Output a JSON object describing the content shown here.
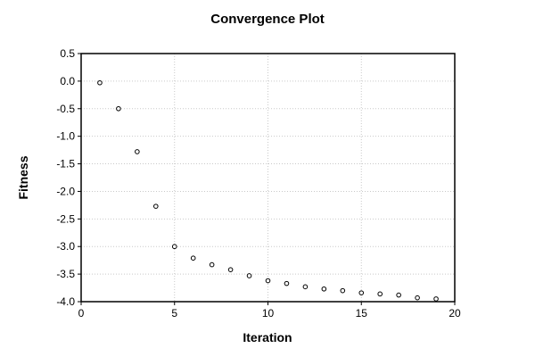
{
  "chart_data": {
    "type": "scatter",
    "title": "Convergence Plot",
    "xlabel": "Iteration",
    "ylabel": "Fitness",
    "xlim": [
      0,
      20
    ],
    "ylim": [
      -4.0,
      0.5
    ],
    "grid": true,
    "legend": "none",
    "marker": "open-circle",
    "x": [
      1,
      2,
      3,
      4,
      5,
      6,
      7,
      8,
      9,
      10,
      11,
      12,
      13,
      14,
      15,
      16,
      17,
      18,
      19
    ],
    "y": [
      -0.03,
      -0.5,
      -1.28,
      -2.27,
      -3.0,
      -3.21,
      -3.33,
      -3.42,
      -3.53,
      -3.62,
      -3.67,
      -3.73,
      -3.77,
      -3.8,
      -3.84,
      -3.86,
      -3.88,
      -3.93,
      -3.95
    ],
    "x_ticks": [
      {
        "value": 0,
        "label": "0"
      },
      {
        "value": 5,
        "label": "5"
      },
      {
        "value": 10,
        "label": "10"
      },
      {
        "value": 15,
        "label": "15"
      },
      {
        "value": 20,
        "label": "20"
      }
    ],
    "y_ticks": [
      {
        "value": 0.5,
        "label": "0.5"
      },
      {
        "value": 0.0,
        "label": "0.0"
      },
      {
        "value": -0.5,
        "label": "-0.5"
      },
      {
        "value": -1.0,
        "label": "-1.0"
      },
      {
        "value": -1.5,
        "label": "-1.5"
      },
      {
        "value": -2.0,
        "label": "-2.0"
      },
      {
        "value": -2.5,
        "label": "-2.5"
      },
      {
        "value": -3.0,
        "label": "-3.0"
      },
      {
        "value": -3.5,
        "label": "-3.5"
      },
      {
        "value": -4.0,
        "label": "-4.0"
      }
    ]
  },
  "colors": {
    "background": "#ffffff",
    "text": "#000000",
    "axis": "#000000",
    "grid": "#c9c9c9",
    "marker_stroke": "#000000",
    "marker_fill": "#ffffff"
  }
}
